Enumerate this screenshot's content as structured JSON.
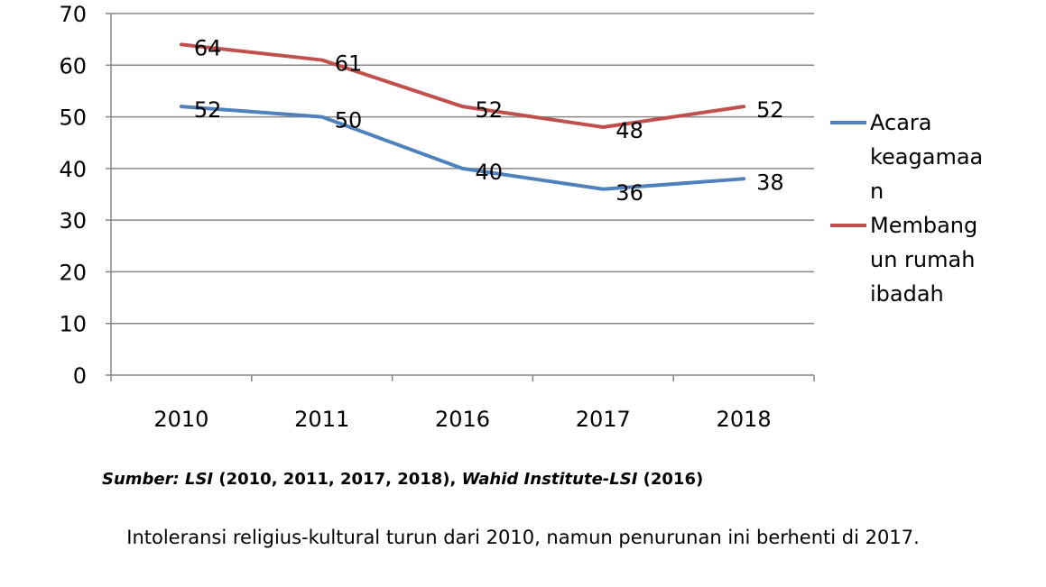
{
  "chart_data": {
    "type": "line",
    "categories": [
      "2010",
      "2011",
      "2016",
      "2017",
      "2018"
    ],
    "series": [
      {
        "name": "Acara keagamaan",
        "values": [
          52,
          50,
          40,
          36,
          38
        ],
        "color": "#4f81bd"
      },
      {
        "name": "Membangun rumah ibadah",
        "values": [
          64,
          61,
          52,
          48,
          52
        ],
        "color": "#c0504d"
      }
    ],
    "data_labels": {
      "Acara keagamaan": [
        "52",
        "50",
        "40",
        "36",
        "38"
      ],
      "Membangun rumah ibadah": [
        "64",
        "61",
        "52",
        "48",
        "52"
      ]
    },
    "y_ticks": [
      "0",
      "10",
      "20",
      "30",
      "40",
      "50",
      "60",
      "70"
    ],
    "ylim": [
      0,
      70
    ],
    "grid": true,
    "legend_position": "right",
    "legend_lines": {
      "Acara keagamaan": [
        "Acara",
        "keagamaa",
        "n"
      ],
      "Membangun rumah ibadah": [
        "Membang",
        "un rumah",
        "ibadah"
      ]
    },
    "gridline_color": "#868686"
  },
  "source": {
    "prefix": "Sumber: ",
    "org1": "LSI",
    "years1": " (2010, 2011, 2017, 2018), ",
    "org2": "Wahid Institute-LSI",
    "years2": " (2016)"
  },
  "caption": "Intoleransi religius-kultural turun dari 2010, namun penurunan ini berhenti di 2017."
}
